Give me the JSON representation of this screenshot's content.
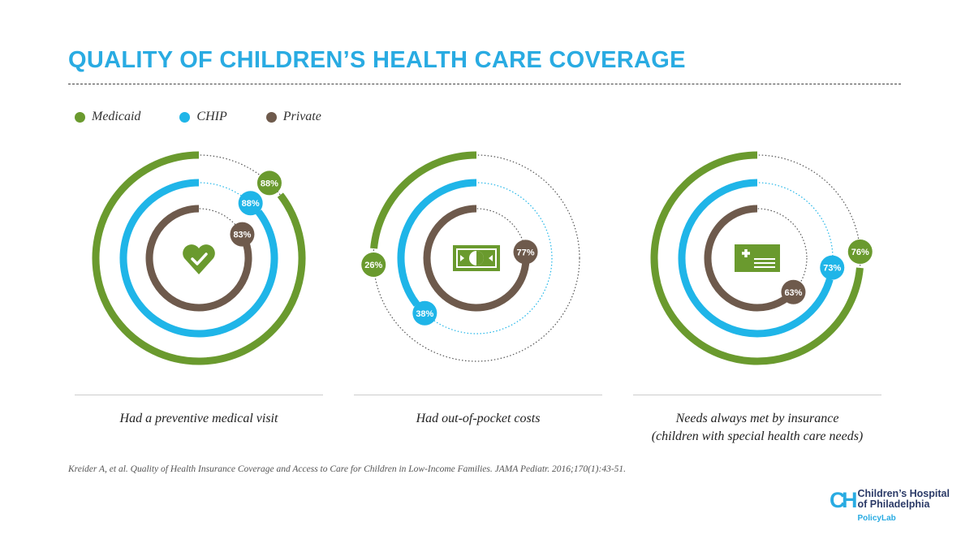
{
  "title": "QUALITY OF CHILDREN’S HEALTH CARE COVERAGE",
  "legend": [
    {
      "label": "Medicaid",
      "color": "#6a9a2e"
    },
    {
      "label": "CHIP",
      "color": "#1fb5e8"
    },
    {
      "label": "Private",
      "color": "#6e5a4c"
    }
  ],
  "chart_data": [
    {
      "type": "radial-bar",
      "caption": [
        "Had a preventive medical visit"
      ],
      "icon": "heart-check-icon",
      "series": [
        {
          "name": "Medicaid",
          "value": 88,
          "label": "88%"
        },
        {
          "name": "CHIP",
          "value": 88,
          "label": "88%"
        },
        {
          "name": "Private",
          "value": 83,
          "label": "83%"
        }
      ]
    },
    {
      "type": "radial-bar",
      "caption": [
        "Had out-of-pocket costs"
      ],
      "icon": "money-bill-icon",
      "series": [
        {
          "name": "Medicaid",
          "value": 26,
          "label": "26%"
        },
        {
          "name": "CHIP",
          "value": 38,
          "label": "38%"
        },
        {
          "name": "Private",
          "value": 77,
          "label": "77%"
        }
      ]
    },
    {
      "type": "radial-bar",
      "caption": [
        "Needs always met by insurance",
        "(children with special health care needs)"
      ],
      "icon": "insurance-card-icon",
      "series": [
        {
          "name": "Medicaid",
          "value": 76,
          "label": "76%"
        },
        {
          "name": "CHIP",
          "value": 73,
          "label": "73%"
        },
        {
          "name": "Private",
          "value": 63,
          "label": "63%"
        }
      ]
    }
  ],
  "source": "Kreider A, et al. Quality of Health Insurance Coverage and Access to Care for Children in Low-Income Families. JAMA Pediatr. 2016;170(1):43-51.",
  "logo": {
    "mark": "CH",
    "line1": "Children’s Hospital",
    "line2": "of Philadelphia",
    "sub": "PolicyLab"
  }
}
